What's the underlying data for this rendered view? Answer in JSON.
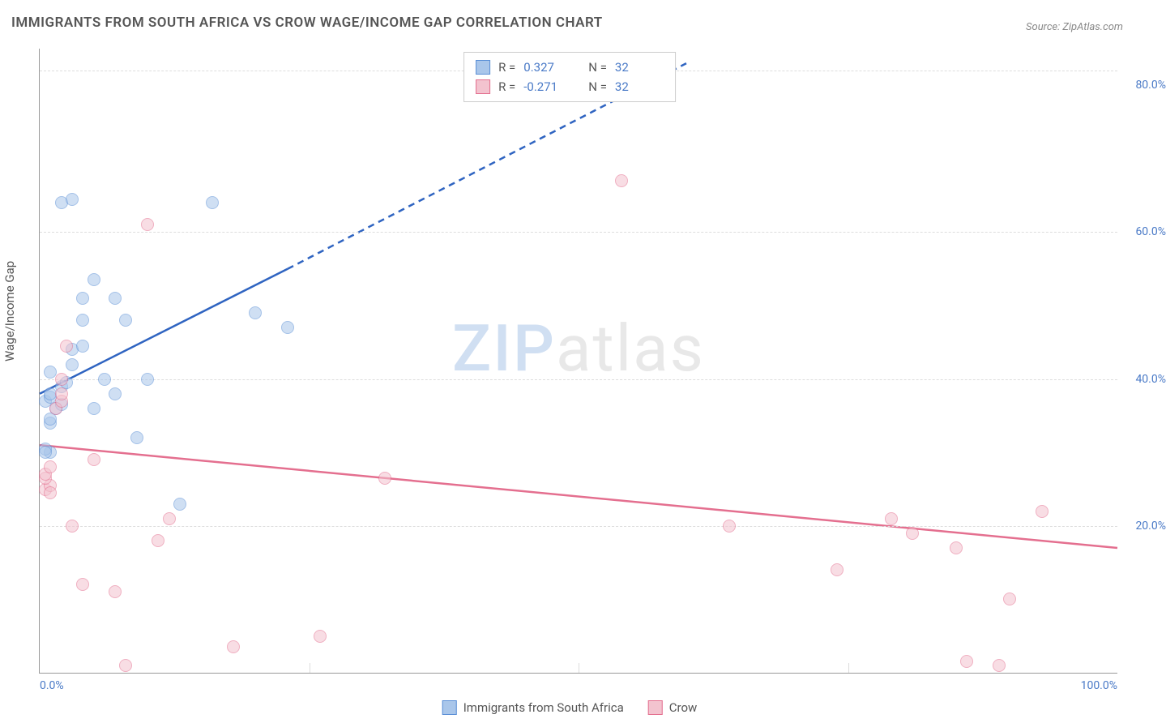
{
  "title": "IMMIGRANTS FROM SOUTH AFRICA VS CROW WAGE/INCOME GAP CORRELATION CHART",
  "source": "Source: ZipAtlas.com",
  "ylabel": "Wage/Income Gap",
  "watermark_zip": "ZIP",
  "watermark_rest": "atlas",
  "chart": {
    "type": "scatter",
    "background_color": "#ffffff",
    "grid_color": "#dddddd",
    "axis_color": "#999999",
    "tick_label_color": "#4a7ac7",
    "label_color": "#555555",
    "title_fontsize": 17,
    "label_fontsize": 15,
    "tick_fontsize": 14,
    "xlim": [
      0,
      100
    ],
    "ylim": [
      0,
      85
    ],
    "gridlines_y": [
      20,
      40,
      60,
      82
    ],
    "gridlines_x": [
      25,
      50,
      75
    ],
    "yticks": [
      {
        "v": 20,
        "label": "20.0%"
      },
      {
        "v": 40,
        "label": "40.0%"
      },
      {
        "v": 60,
        "label": "60.0%"
      },
      {
        "v": 80,
        "label": "80.0%"
      }
    ],
    "xticks": [
      {
        "v": 0,
        "label": "0.0%",
        "align": "left"
      },
      {
        "v": 100,
        "label": "100.0%",
        "align": "right"
      }
    ],
    "marker_radius": 8,
    "marker_border_width": 1.5,
    "series": [
      {
        "name": "Immigrants from South Africa",
        "fill_color": "#a9c6ea",
        "border_color": "#5a8fd6",
        "fill_opacity": 0.55,
        "R": "0.327",
        "N": "32",
        "points": [
          [
            1,
            30
          ],
          [
            0.5,
            30.5
          ],
          [
            1,
            34
          ],
          [
            1,
            34.5
          ],
          [
            1.5,
            36
          ],
          [
            2,
            36.5
          ],
          [
            0.5,
            37
          ],
          [
            1,
            37.5
          ],
          [
            1,
            38
          ],
          [
            2,
            39
          ],
          [
            2.5,
            39.5
          ],
          [
            1,
            41
          ],
          [
            3,
            42
          ],
          [
            3,
            44
          ],
          [
            4,
            44.5
          ],
          [
            4,
            48
          ],
          [
            4,
            51
          ],
          [
            5,
            53.5
          ],
          [
            2,
            64
          ],
          [
            3,
            64.5
          ],
          [
            5,
            36
          ],
          [
            6,
            40
          ],
          [
            7,
            51
          ],
          [
            7,
            38
          ],
          [
            8,
            48
          ],
          [
            9,
            32
          ],
          [
            10,
            40
          ],
          [
            13,
            23
          ],
          [
            16,
            64
          ],
          [
            20,
            49
          ],
          [
            23,
            47
          ],
          [
            0.5,
            30
          ]
        ],
        "trend": {
          "color": "#2f64c1",
          "width": 2.5,
          "solid": {
            "x1": 0,
            "y1": 38,
            "x2": 23,
            "y2": 55
          },
          "dashed": {
            "x1": 23,
            "y1": 55,
            "x2": 60,
            "y2": 83
          }
        }
      },
      {
        "name": "Crow",
        "fill_color": "#f3c3cf",
        "border_color": "#e46f8f",
        "fill_opacity": 0.55,
        "R": "-0.271",
        "N": "32",
        "points": [
          [
            0.5,
            25
          ],
          [
            1,
            25.5
          ],
          [
            0.5,
            26.5
          ],
          [
            0.5,
            27
          ],
          [
            1,
            28
          ],
          [
            1,
            24.5
          ],
          [
            1.5,
            36
          ],
          [
            2,
            37
          ],
          [
            2,
            38
          ],
          [
            2,
            40
          ],
          [
            2.5,
            44.5
          ],
          [
            3,
            20
          ],
          [
            4,
            12
          ],
          [
            5,
            29
          ],
          [
            7,
            11
          ],
          [
            8,
            1
          ],
          [
            10,
            61
          ],
          [
            11,
            18
          ],
          [
            12,
            21
          ],
          [
            18,
            3.5
          ],
          [
            26,
            5
          ],
          [
            32,
            26.5
          ],
          [
            54,
            67
          ],
          [
            64,
            20
          ],
          [
            74,
            14
          ],
          [
            79,
            21
          ],
          [
            81,
            19
          ],
          [
            85,
            17
          ],
          [
            90,
            10
          ],
          [
            93,
            22
          ],
          [
            86,
            1.5
          ],
          [
            89,
            1
          ]
        ],
        "trend": {
          "color": "#e46f8f",
          "width": 2.5,
          "solid": {
            "x1": 0,
            "y1": 31,
            "x2": 100,
            "y2": 17
          }
        }
      }
    ]
  },
  "legend_top": {
    "border_color": "#cccccc",
    "background": "#ffffff",
    "fontsize": 15,
    "label_color": "#555555",
    "value_color": "#4a7ac7",
    "R_label": "R =",
    "N_label": "N ="
  },
  "legend_bottom": {
    "fontsize": 15,
    "color": "#555555"
  }
}
